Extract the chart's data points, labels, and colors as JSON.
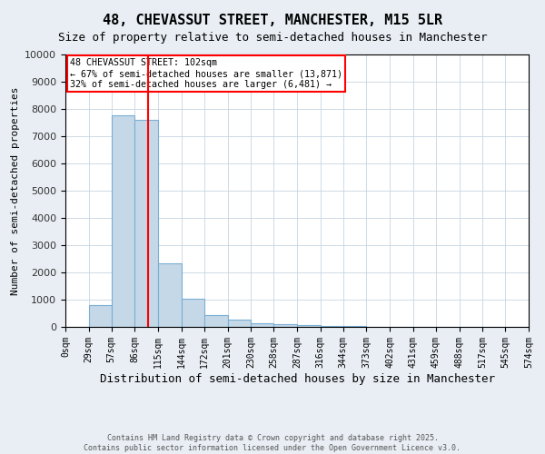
{
  "title": "48, CHEVASSUT STREET, MANCHESTER, M15 5LR",
  "subtitle": "Size of property relative to semi-detached houses in Manchester",
  "xlabel": "Distribution of semi-detached houses by size in Manchester",
  "ylabel": "Number of semi-detached properties",
  "bin_edges": [
    0,
    29,
    57,
    86,
    115,
    144,
    172,
    201,
    230,
    258,
    287,
    316,
    344,
    373,
    402,
    431,
    459,
    488,
    517,
    545,
    574
  ],
  "bar_heights": [
    0,
    800,
    7750,
    7600,
    2350,
    1050,
    450,
    280,
    120,
    100,
    80,
    35,
    20,
    10,
    5,
    3,
    2,
    1,
    0,
    0
  ],
  "bar_color": "#c5d8e8",
  "bar_edge_color": "#7aafd4",
  "property_size": 102,
  "vline_color": "red",
  "annotation_title": "48 CHEVASSUT STREET: 102sqm",
  "annotation_line2": "← 67% of semi-detached houses are smaller (13,871)",
  "annotation_line3": "32% of semi-detached houses are larger (6,481) →",
  "ylim": [
    0,
    10000
  ],
  "yticks": [
    0,
    1000,
    2000,
    3000,
    4000,
    5000,
    6000,
    7000,
    8000,
    9000,
    10000
  ],
  "footer_line1": "Contains HM Land Registry data © Crown copyright and database right 2025.",
  "footer_line2": "Contains public sector information licensed under the Open Government Licence v3.0.",
  "background_color": "#e8eef4",
  "plot_bg_color": "#ffffff",
  "grid_color": "#c8d4e0"
}
